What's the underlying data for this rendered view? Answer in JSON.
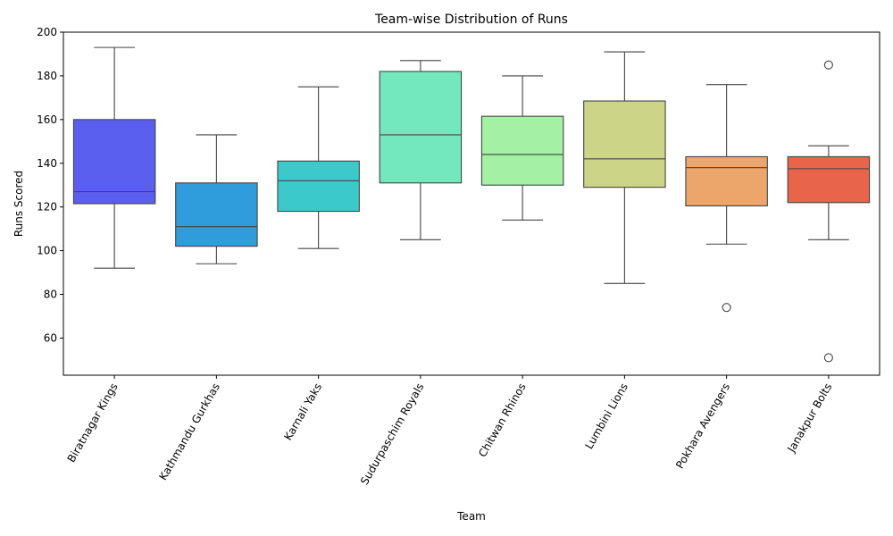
{
  "chart_data": {
    "type": "box",
    "title": "Team-wise Distribution of Runs",
    "xlabel": "Team",
    "ylabel": "Runs Scored",
    "ylim": [
      43,
      200
    ],
    "yticks": [
      60,
      80,
      100,
      120,
      140,
      160,
      180,
      200
    ],
    "grid": false,
    "legend": "none",
    "categories": [
      "Biratnagar Kings",
      "Kathmandu Gurkhas",
      "Karnali Yaks",
      "Sudurpaschim Royals",
      "Chitwan Rhinos",
      "Lumbini Lions",
      "Pokhara Avengers",
      "Janakpur Bolts"
    ],
    "boxes": [
      {
        "whisker_low": 92,
        "q1": 121.5,
        "median": 127,
        "q3": 160,
        "whisker_high": 193,
        "outliers": [],
        "color": "#5b5ff0"
      },
      {
        "whisker_low": 94,
        "q1": 102,
        "median": 111,
        "q3": 131,
        "whisker_high": 153,
        "outliers": [],
        "color": "#2f9ddb"
      },
      {
        "whisker_low": 101,
        "q1": 118,
        "median": 132,
        "q3": 141,
        "whisker_high": 175,
        "outliers": [],
        "color": "#3cc9cb"
      },
      {
        "whisker_low": 105,
        "q1": 131,
        "median": 153,
        "q3": 182,
        "whisker_high": 187,
        "outliers": [],
        "color": "#73e8bf"
      },
      {
        "whisker_low": 114,
        "q1": 130,
        "median": 144,
        "q3": 161.5,
        "whisker_high": 180,
        "outliers": [],
        "color": "#a4f1a6"
      },
      {
        "whisker_low": 85,
        "q1": 129,
        "median": 142,
        "q3": 168.5,
        "whisker_high": 191,
        "outliers": [],
        "color": "#ccd487"
      },
      {
        "whisker_low": 103,
        "q1": 120.5,
        "median": 138,
        "q3": 143,
        "whisker_high": 176,
        "outliers": [
          74
        ],
        "color": "#eca66b"
      },
      {
        "whisker_low": 105,
        "q1": 122,
        "median": 137.5,
        "q3": 143,
        "whisker_high": 148,
        "outliers": [
          185,
          51
        ],
        "color": "#e8644a"
      }
    ]
  }
}
